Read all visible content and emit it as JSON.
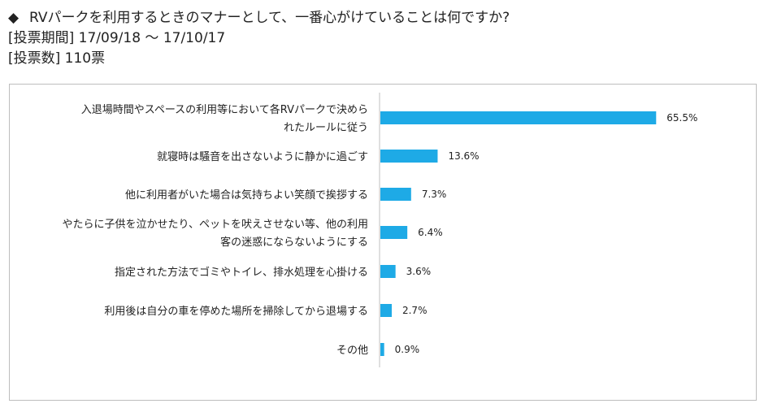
{
  "header": {
    "diamond": "◆",
    "question": "RVパークを利用するときのマナーとして、一番心がけていることは何ですか?",
    "period": "[投票期間] 17/09/18 ～ 17/10/17",
    "votes": "[投票数] 110票"
  },
  "colors": {
    "bar": "#1eaae6",
    "axis": "#bfbfbf",
    "border": "#bdbdbd"
  },
  "chart_data": {
    "type": "bar",
    "orientation": "horizontal",
    "categories": [
      [
        "入退場時間やスペースの利用等において各RVパークで決めら",
        "れたルールに従う"
      ],
      [
        "就寝時は騒音を出さないように静かに過ごす"
      ],
      [
        "他に利用者がいた場合は気持ちよい笑顔で挨拶する"
      ],
      [
        "やたらに子供を泣かせたり、ペットを吠えさせない等、他の利用",
        "客の迷惑にならないようにする"
      ],
      [
        "指定された方法でゴミやトイレ、排水処理を心掛ける"
      ],
      [
        "利用後は自分の車を停めた場所を掃除してから退場する"
      ],
      [
        "その他"
      ]
    ],
    "values": [
      65.5,
      13.6,
      7.3,
      6.4,
      3.6,
      2.7,
      0.9
    ],
    "value_labels": [
      "65.5%",
      "13.6%",
      "7.3%",
      "6.4%",
      "3.6%",
      "2.7%",
      "0.9%"
    ],
    "xlim": [
      0,
      100
    ],
    "grid": false,
    "legend": "none"
  }
}
